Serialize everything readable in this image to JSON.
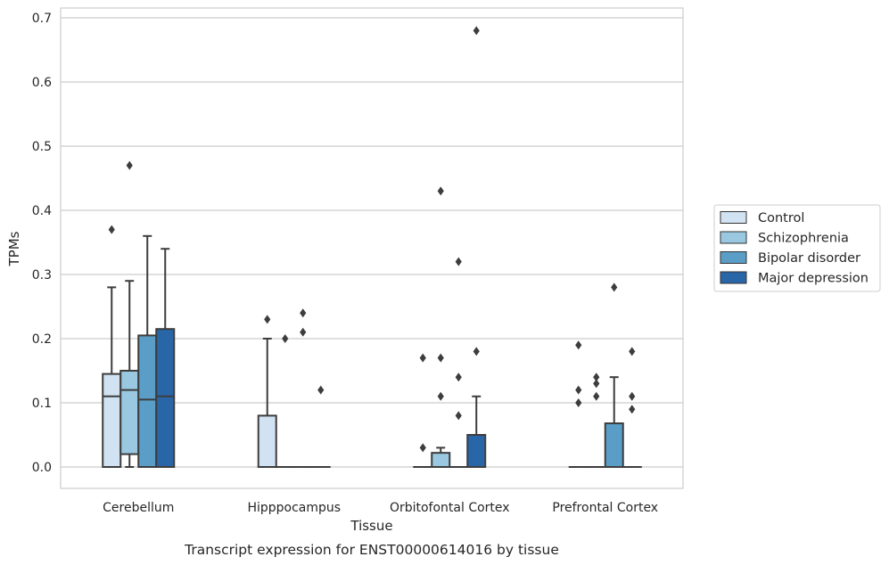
{
  "chart_data": {
    "type": "box",
    "title": "Transcript expression for ENST00000614016 by tissue",
    "xlabel": "Tissue",
    "ylabel": "TPMs",
    "ylim": [
      -0.033,
      0.715
    ],
    "yticks": [
      0.0,
      0.1,
      0.2,
      0.3,
      0.4,
      0.5,
      0.6,
      0.7
    ],
    "ytick_labels": [
      "0.0",
      "0.1",
      "0.2",
      "0.3",
      "0.4",
      "0.5",
      "0.6",
      "0.7"
    ],
    "grid": "horizontal",
    "legend_position": "right",
    "categories": [
      "Cerebellum",
      "Hipppocampus",
      "Orbitofontal Cortex",
      "Prefrontal Cortex"
    ],
    "series": [
      {
        "name": "Control",
        "color": "#d1e2f2",
        "boxes": [
          {
            "q1": 0.0,
            "median": 0.11,
            "q3": 0.145,
            "whisker_low": 0.0,
            "whisker_high": 0.28,
            "outliers": [
              0.37
            ]
          },
          {
            "q1": 0.0,
            "median": 0.0,
            "q3": 0.08,
            "whisker_low": 0.0,
            "whisker_high": 0.2,
            "outliers": [
              0.23
            ]
          },
          {
            "q1": 0.0,
            "median": 0.0,
            "q3": 0.0,
            "whisker_low": 0.0,
            "whisker_high": 0.0,
            "outliers": [
              0.03,
              0.17
            ]
          },
          {
            "q1": 0.0,
            "median": 0.0,
            "q3": 0.0,
            "whisker_low": 0.0,
            "whisker_high": 0.0,
            "outliers": [
              0.1,
              0.12,
              0.19
            ]
          }
        ]
      },
      {
        "name": "Schizophrenia",
        "color": "#9ac8e0",
        "boxes": [
          {
            "q1": 0.02,
            "median": 0.12,
            "q3": 0.15,
            "whisker_low": 0.0,
            "whisker_high": 0.29,
            "outliers": [
              0.47
            ]
          },
          {
            "q1": 0.0,
            "median": 0.0,
            "q3": 0.0,
            "whisker_low": 0.0,
            "whisker_high": 0.0,
            "outliers": [
              0.2
            ]
          },
          {
            "q1": 0.0,
            "median": 0.0,
            "q3": 0.022,
            "whisker_low": 0.0,
            "whisker_high": 0.03,
            "outliers": [
              0.11,
              0.17,
              0.43
            ]
          },
          {
            "q1": 0.0,
            "median": 0.0,
            "q3": 0.0,
            "whisker_low": 0.0,
            "whisker_high": 0.0,
            "outliers": [
              0.11,
              0.13,
              0.14
            ]
          }
        ]
      },
      {
        "name": "Bipolar disorder",
        "color": "#5a9ec8",
        "boxes": [
          {
            "q1": 0.0,
            "median": 0.105,
            "q3": 0.205,
            "whisker_low": 0.0,
            "whisker_high": 0.36,
            "outliers": []
          },
          {
            "q1": 0.0,
            "median": 0.0,
            "q3": 0.0,
            "whisker_low": 0.0,
            "whisker_high": 0.0,
            "outliers": [
              0.21,
              0.24
            ]
          },
          {
            "q1": 0.0,
            "median": 0.0,
            "q3": 0.0,
            "whisker_low": 0.0,
            "whisker_high": 0.0,
            "outliers": [
              0.08,
              0.14,
              0.32
            ]
          },
          {
            "q1": 0.0,
            "median": 0.0,
            "q3": 0.068,
            "whisker_low": 0.0,
            "whisker_high": 0.14,
            "outliers": [
              0.28
            ]
          }
        ]
      },
      {
        "name": "Major depression",
        "color": "#2966a8",
        "boxes": [
          {
            "q1": 0.0,
            "median": 0.11,
            "q3": 0.215,
            "whisker_low": 0.0,
            "whisker_high": 0.34,
            "outliers": []
          },
          {
            "q1": 0.0,
            "median": 0.0,
            "q3": 0.0,
            "whisker_low": 0.0,
            "whisker_high": 0.0,
            "outliers": [
              0.12
            ]
          },
          {
            "q1": 0.0,
            "median": 0.0,
            "q3": 0.05,
            "whisker_low": 0.0,
            "whisker_high": 0.11,
            "outliers": [
              0.18,
              0.68
            ]
          },
          {
            "q1": 0.0,
            "median": 0.0,
            "q3": 0.0,
            "whisker_low": 0.0,
            "whisker_high": 0.0,
            "outliers": [
              0.09,
              0.11,
              0.18
            ]
          }
        ]
      }
    ]
  }
}
